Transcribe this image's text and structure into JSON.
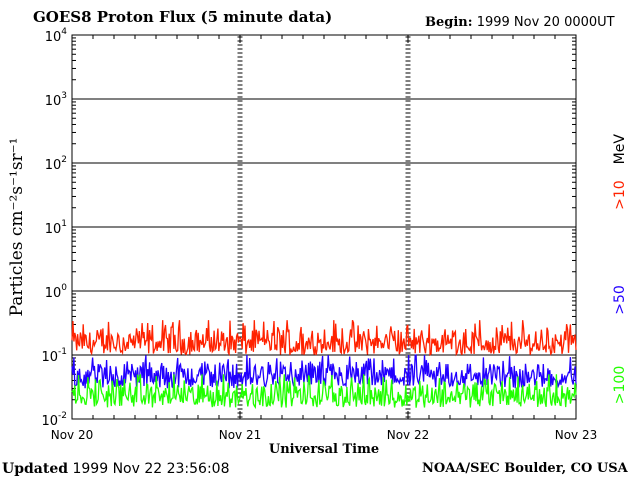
{
  "header": {
    "title": "GOES8 Proton Flux (5 minute data)",
    "begin_label": "Begin:",
    "begin_value": "1999 Nov 20 0000UT"
  },
  "footer": {
    "updated_label": "Updated",
    "updated_value": "1999 Nov 22 23:56:08",
    "credit": "NOAA/SEC Boulder, CO USA"
  },
  "chart_data": {
    "type": "line",
    "title": "GOES8 Proton Flux (5 minute data)",
    "xlabel": "Universal Time",
    "ylabel": "Particles cm⁻²s⁻¹sr⁻¹",
    "yscale": "log",
    "ylim": [
      0.01,
      10000
    ],
    "y_ticks": [
      {
        "value": 0.01,
        "base": "10",
        "exp": "-2"
      },
      {
        "value": 0.1,
        "base": "10",
        "exp": "-1"
      },
      {
        "value": 1,
        "base": "10",
        "exp": "0"
      },
      {
        "value": 10,
        "base": "10",
        "exp": "1"
      },
      {
        "value": 100,
        "base": "10",
        "exp": "2"
      },
      {
        "value": 1000,
        "base": "10",
        "exp": "3"
      },
      {
        "value": 10000,
        "base": "10",
        "exp": "4"
      }
    ],
    "x_ticks": [
      "Nov 20",
      "Nov 21",
      "Nov 22",
      "Nov 23"
    ],
    "grid": true,
    "legend_position": "right",
    "series": [
      {
        "name": ">10 MeV",
        "color": "#ff2200",
        "level_min": 0.1,
        "level_max": 0.35
      },
      {
        "name": ">50",
        "color": "#2200ff",
        "level_min": 0.03,
        "level_max": 0.1
      },
      {
        "name": ">100",
        "color": "#22ff00",
        "level_min": 0.015,
        "level_max": 0.05
      }
    ]
  }
}
